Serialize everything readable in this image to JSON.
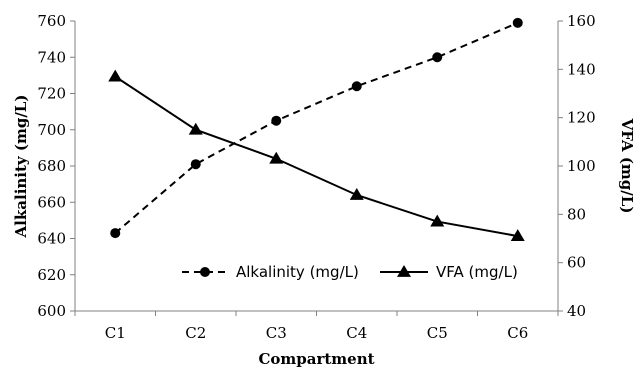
{
  "chart_data": {
    "type": "line",
    "categories": [
      "C1",
      "C2",
      "C3",
      "C4",
      "C5",
      "C6"
    ],
    "xlabel": "Compartment",
    "ylabel": "Alkalinity (mg/L)",
    "ylabel_right": "VFA (mg/L)",
    "ylim": [
      600,
      760
    ],
    "ylim_right": [
      40,
      160
    ],
    "yticks": [
      "600",
      "620",
      "640",
      "660",
      "680",
      "700",
      "720",
      "740",
      "760"
    ],
    "yticks_right": [
      "40",
      "60",
      "80",
      "100",
      "120",
      "140",
      "160"
    ],
    "grid": false,
    "legend_position": "bottom-right",
    "series": [
      {
        "name": "Alkalinity (mg/L)",
        "axis": "left",
        "marker": "circle",
        "line_style": "dashed",
        "color": "#000000",
        "values": [
          643,
          681,
          705,
          724,
          740,
          759
        ]
      },
      {
        "name": "VFA (mg/L)",
        "axis": "right",
        "marker": "triangle",
        "line_style": "solid",
        "color": "#000000",
        "values": [
          137,
          115,
          103,
          88,
          77,
          71
        ]
      }
    ]
  }
}
